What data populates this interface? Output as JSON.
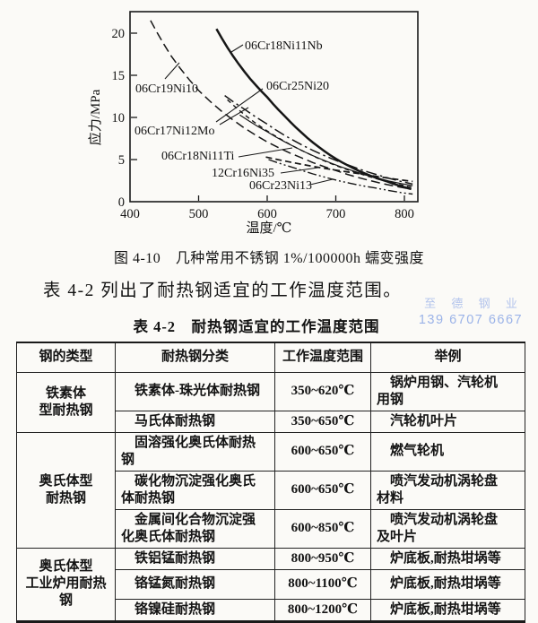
{
  "figure": {
    "caption": "图 4-10　几种常用不锈钢 1%/100000h 蠕变强度",
    "y_axis_label": "应力/MPa",
    "x_axis_label": "温度/℃",
    "y_ticks": [
      "20",
      "15",
      "10",
      "5",
      "0"
    ],
    "x_ticks": [
      "400",
      "500",
      "600",
      "700",
      "800"
    ]
  },
  "chart_data": {
    "type": "line",
    "title": "几种常用不锈钢 1%/100000h 蠕变强度",
    "xlabel": "温度/℃",
    "ylabel": "应力/MPa",
    "xlim": [
      400,
      830
    ],
    "ylim": [
      0,
      22
    ],
    "grid": false,
    "legend_position": "inline-labels",
    "series": [
      {
        "name": "06Cr19Ni10",
        "style": "long-dash",
        "points": [
          [
            430,
            21.5
          ],
          [
            460,
            17.3
          ],
          [
            500,
            13.2
          ],
          [
            550,
            9.7
          ],
          [
            600,
            7.1
          ],
          [
            650,
            5.2
          ],
          [
            700,
            3.7
          ],
          [
            750,
            2.5
          ],
          [
            810,
            1.5
          ]
        ]
      },
      {
        "name": "06Cr18Ni11Nb",
        "style": "solid-bold",
        "points": [
          [
            526,
            20.5
          ],
          [
            550,
            17.3
          ],
          [
            575,
            14.6
          ],
          [
            600,
            12.4
          ],
          [
            625,
            10.2
          ],
          [
            650,
            8.2
          ],
          [
            675,
            6.5
          ],
          [
            700,
            5.1
          ],
          [
            725,
            4.0
          ],
          [
            750,
            3.1
          ],
          [
            775,
            2.4
          ],
          [
            810,
            1.5
          ]
        ]
      },
      {
        "name": "06Cr25Ni20",
        "style": "dash-dot",
        "points": [
          [
            538,
            12.6
          ],
          [
            570,
            10.8
          ],
          [
            600,
            9.2
          ],
          [
            640,
            7.2
          ],
          [
            680,
            5.6
          ],
          [
            720,
            4.3
          ],
          [
            760,
            3.2
          ],
          [
            812,
            2.1
          ]
        ]
      },
      {
        "name": "06Cr17Ni12Mo",
        "style": "short-dash",
        "points": [
          [
            542,
            12.1
          ],
          [
            580,
            9.5
          ],
          [
            620,
            7.4
          ],
          [
            660,
            5.7
          ],
          [
            700,
            4.3
          ],
          [
            740,
            3.2
          ],
          [
            780,
            2.3
          ],
          [
            812,
            1.7
          ]
        ]
      },
      {
        "name": "06Cr18Ni11Ti",
        "style": "solid-thin",
        "points": [
          [
            560,
            10.3
          ],
          [
            600,
            8.3
          ],
          [
            640,
            6.5
          ],
          [
            680,
            5.0
          ],
          [
            720,
            3.8
          ],
          [
            760,
            2.8
          ],
          [
            812,
            1.9
          ]
        ]
      },
      {
        "name": "12Cr16Ni35",
        "style": "medium-dash",
        "points": [
          [
            598,
            5.3
          ],
          [
            640,
            4.6
          ],
          [
            680,
            4.0
          ],
          [
            720,
            3.5
          ],
          [
            760,
            3.0
          ],
          [
            812,
            2.4
          ]
        ]
      },
      {
        "name": "06Cr23Ni13",
        "style": "dash-dot-dot",
        "points": [
          [
            602,
            5.0
          ],
          [
            640,
            4.0
          ],
          [
            680,
            3.0
          ],
          [
            720,
            2.2
          ],
          [
            760,
            1.6
          ],
          [
            812,
            0.9
          ]
        ]
      }
    ]
  },
  "paragraph": "表 4-2 列出了耐热钢适宜的工作温度范围。",
  "table": {
    "title": "表 4-2　耐热钢适宜的工作温度范围",
    "headers": [
      "钢的类型",
      "耐热钢分类",
      "工作温度范围",
      "举例"
    ],
    "groups": [
      {
        "line1": "铁素体",
        "line2": "型耐热钢"
      },
      {
        "line1": "奥氏体型",
        "line2": "耐热钢"
      },
      {
        "line1": "奥氏体型",
        "line2": "工业炉用耐热钢"
      }
    ],
    "rows": [
      {
        "cls": "铁素体-珠光体耐热钢",
        "temp": "350~620℃",
        "example": "锅炉用钢、汽轮机用钢"
      },
      {
        "cls": "马氏体耐热钢",
        "temp": "350~650℃",
        "example": "汽轮机叶片"
      },
      {
        "cls": "固溶强化奥氏体耐热钢",
        "temp": "600~650℃",
        "example": "燃气轮机"
      },
      {
        "cls": "碳化物沉淀强化奥氏体耐热钢",
        "temp": "600~650℃",
        "example": "喷汽发动机涡轮盘材料"
      },
      {
        "cls": "金属间化合物沉淀强化奥氏体耐热钢",
        "temp": "600~850℃",
        "example": "喷汽发动机涡轮盘及叶片"
      },
      {
        "cls": "铁铝锰耐热钢",
        "temp": "800~950℃",
        "example": "炉底板,耐热坩埚等"
      },
      {
        "cls": "铬锰氮耐热钢",
        "temp": "800~1100℃",
        "example": "炉底板,耐热坩埚等"
      },
      {
        "cls": "铬镍硅耐热钢",
        "temp": "800~1200℃",
        "example": "炉底板,耐热坩埚等"
      }
    ]
  },
  "watermark": {
    "line1": "至 德 钢 业",
    "line2": "139 6707 6667",
    "color1": "#b3c4ec",
    "color2": "#9bb3e8"
  }
}
